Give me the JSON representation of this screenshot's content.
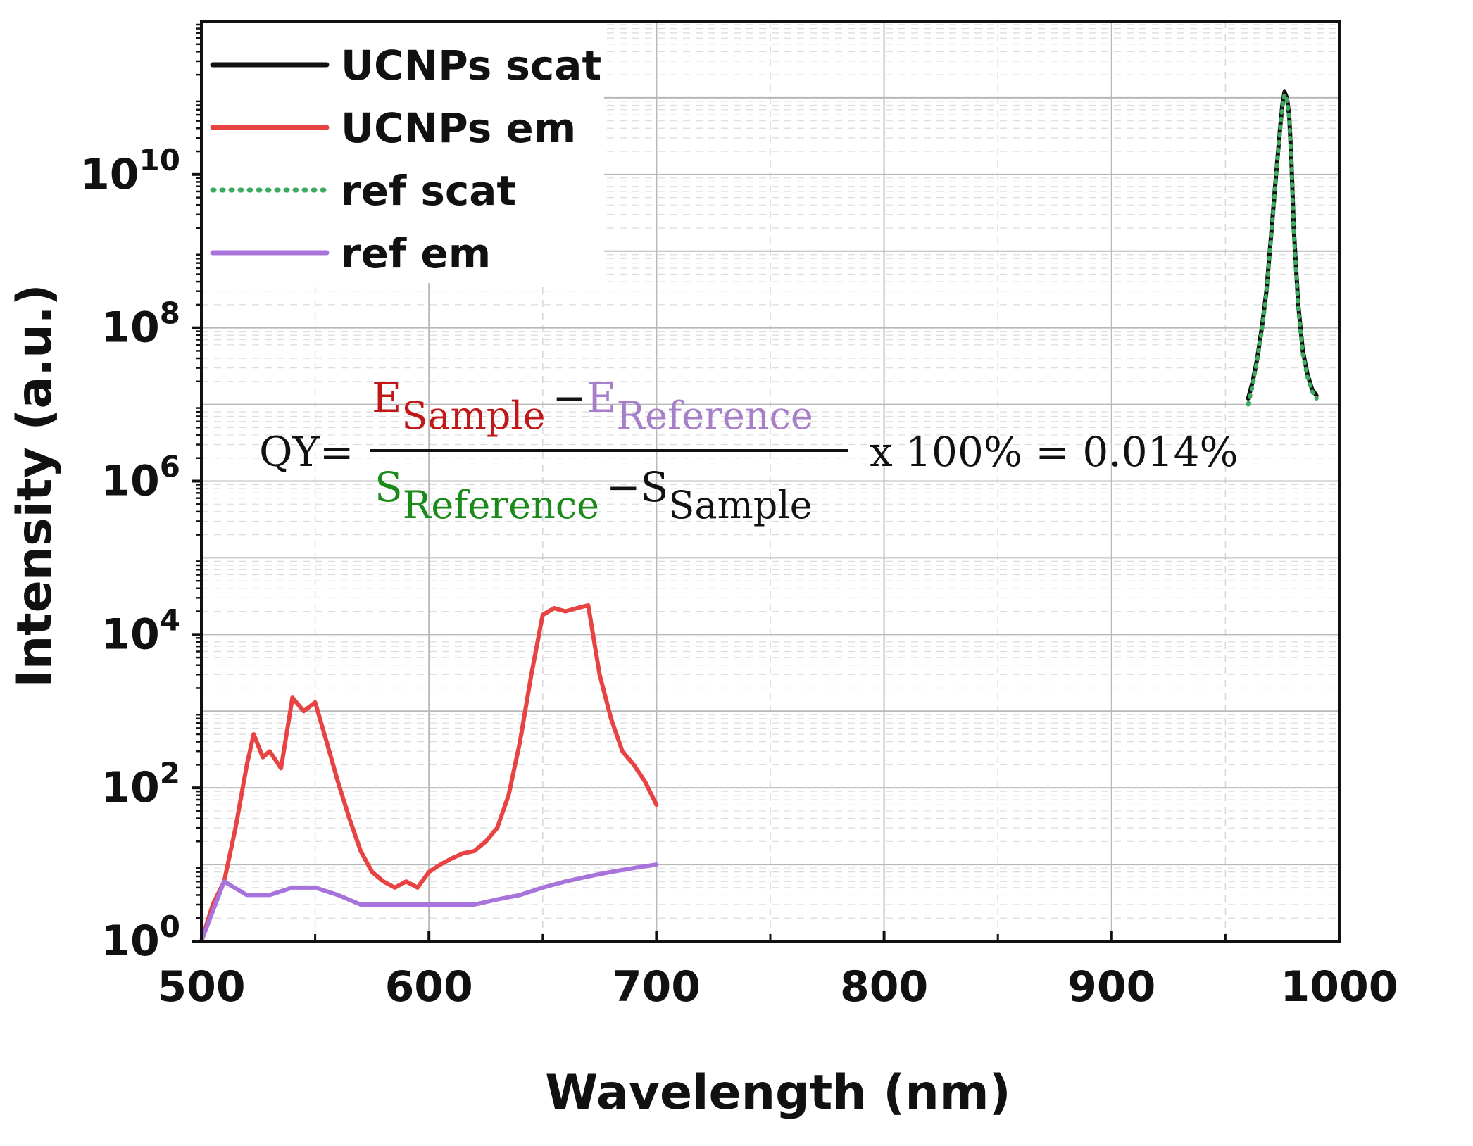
{
  "chart_data": {
    "type": "line",
    "xlabel": "Wavelength (nm)",
    "ylabel": "Intensity (a.u.)",
    "xlim": [
      500,
      1000
    ],
    "ylim": [
      1,
      1000000000000.0
    ],
    "yscale": "log",
    "grid": true,
    "legend_position": "top-left",
    "x_ticks": [
      "500",
      "600",
      "700",
      "800",
      "900",
      "1000"
    ],
    "y_ticks": [
      {
        "base": "10",
        "exp": "0"
      },
      {
        "base": "10",
        "exp": "2"
      },
      {
        "base": "10",
        "exp": "4"
      },
      {
        "base": "10",
        "exp": "6"
      },
      {
        "base": "10",
        "exp": "8"
      },
      {
        "base": "10",
        "exp": "10"
      }
    ],
    "series": [
      {
        "name": "UCNPs scat",
        "color": "#111111",
        "style": "solid",
        "x": [
          960,
          962,
          964,
          966,
          968,
          970,
          972,
          974,
          975,
          976,
          977,
          978,
          979,
          980,
          982,
          984,
          986,
          988,
          990
        ],
        "y": [
          12000000.0,
          20000000.0,
          40000000.0,
          100000000.0,
          300000000.0,
          1500000000.0,
          8000000000.0,
          40000000000.0,
          80000000000.0,
          120000000000.0,
          100000000000.0,
          60000000000.0,
          15000000000.0,
          2000000000.0,
          200000000.0,
          50000000.0,
          25000000.0,
          16000000.0,
          13000000.0
        ]
      },
      {
        "name": "UCNPs em",
        "color": "#e84343",
        "style": "solid",
        "x": [
          500,
          505,
          510,
          515,
          520,
          523,
          527,
          530,
          535,
          540,
          545,
          550,
          555,
          560,
          565,
          570,
          575,
          580,
          585,
          590,
          595,
          600,
          605,
          610,
          615,
          620,
          625,
          630,
          635,
          640,
          645,
          650,
          655,
          660,
          665,
          670,
          675,
          680,
          685,
          690,
          695,
          700
        ],
        "y": [
          1,
          3,
          6,
          30,
          200,
          500,
          250,
          300,
          180,
          1500,
          1000,
          1300,
          400,
          120,
          40,
          15,
          8,
          6,
          5,
          6,
          5,
          8,
          10,
          12,
          14,
          15,
          20,
          30,
          80,
          400,
          3000,
          18000,
          22000,
          20000,
          22000,
          24000,
          3000,
          800,
          300,
          200,
          120,
          60
        ]
      },
      {
        "name": "ref scat",
        "color": "#3daa60",
        "style": "dotted",
        "x": [
          960,
          962,
          964,
          966,
          968,
          970,
          972,
          974,
          975,
          976,
          977,
          978,
          979,
          980,
          982,
          984,
          986,
          988,
          990
        ],
        "y": [
          10000000.0,
          18000000.0,
          38000000.0,
          90000000.0,
          280000000.0,
          1400000000.0,
          7500000000.0,
          38000000000.0,
          75000000000.0,
          110000000000.0,
          95000000000.0,
          55000000000.0,
          14000000000.0,
          1800000000.0,
          180000000.0,
          45000000.0,
          23000000.0,
          15000000.0,
          12000000.0
        ]
      },
      {
        "name": "ref em",
        "color": "#a873db",
        "style": "solid",
        "x": [
          500,
          510,
          520,
          530,
          540,
          550,
          560,
          570,
          580,
          590,
          600,
          610,
          620,
          630,
          640,
          650,
          660,
          670,
          680,
          690,
          700
        ],
        "y": [
          1,
          6,
          4,
          4,
          5,
          5,
          4,
          3,
          3,
          3,
          3,
          3,
          3,
          3.5,
          4,
          5,
          6,
          7,
          8,
          9,
          10
        ]
      }
    ]
  },
  "formula": {
    "prefix": "QY=",
    "num_e1": "E",
    "num_e1_sub": "Sample",
    "num_minus": "−",
    "num_e2": "E",
    "num_e2_sub": "Reference",
    "den_s1": "S",
    "den_s1_sub": "Reference",
    "den_minus": "−",
    "den_s2": "S",
    "den_s2_sub": "Sample",
    "suffix": "x 100% = 0.014%",
    "colors": {
      "sample_em": "#c01818",
      "ref_em": "#a67fc8",
      "ref_scat": "#1a8a1a",
      "sample_scat": "#111111"
    }
  }
}
